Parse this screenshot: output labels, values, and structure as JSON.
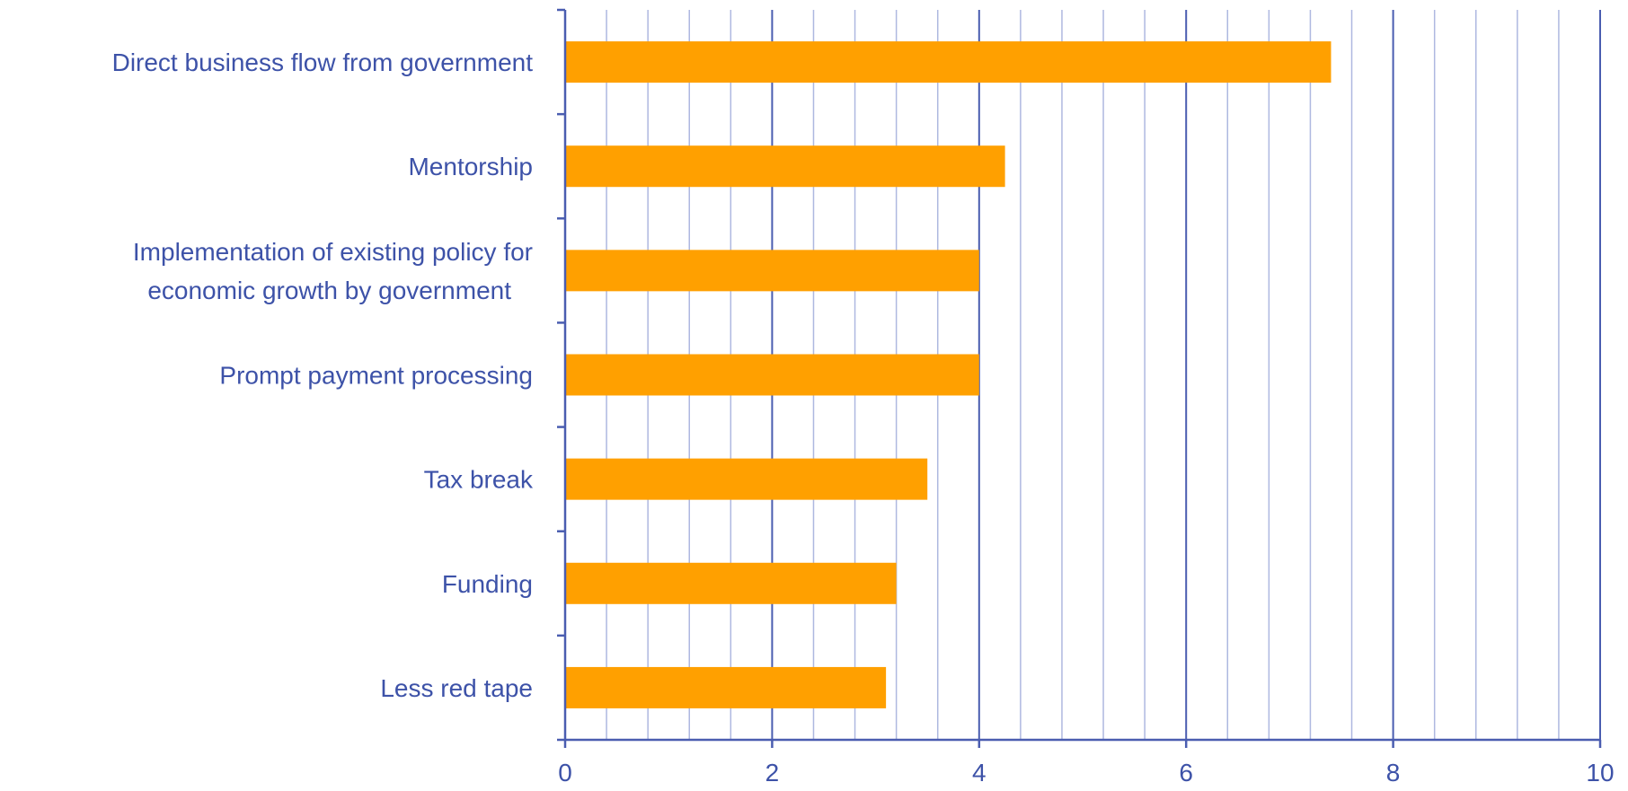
{
  "chart_data": {
    "type": "bar",
    "orientation": "horizontal",
    "categories": [
      [
        "Direct business flow from government"
      ],
      [
        "Mentorship"
      ],
      [
        "Implementation of existing policy for",
        "economic growth by government"
      ],
      [
        "Prompt payment processing"
      ],
      [
        "Tax break"
      ],
      [
        "Funding"
      ],
      [
        "Less red tape"
      ]
    ],
    "values": [
      7.4,
      4.25,
      4.0,
      4.0,
      3.5,
      3.2,
      3.1
    ],
    "xlim": [
      0,
      10
    ],
    "xticks": [
      0,
      2,
      4,
      6,
      8,
      10
    ],
    "minor_step": 0.4,
    "grid": true,
    "title": "",
    "xlabel": "",
    "ylabel": "",
    "colors": {
      "bar": "#FFA000",
      "axis": "#4A5DB0",
      "major_grid": "#4A5DB0",
      "minor_grid": "#AEB8E0",
      "label": "#3D52A8"
    }
  }
}
